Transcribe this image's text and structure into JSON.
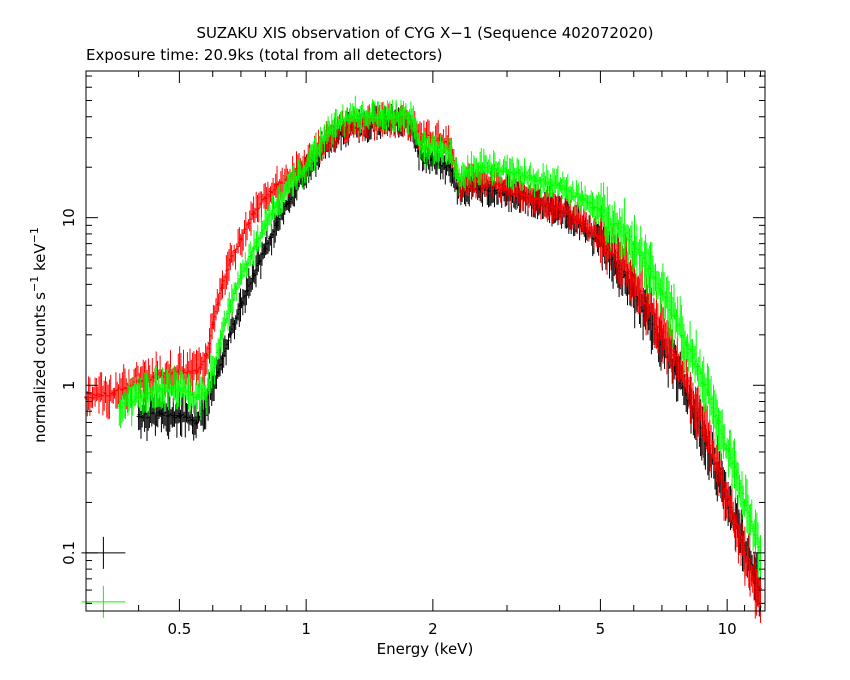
{
  "chart_data": {
    "type": "scatter",
    "title": "SUZAKU XIS observation of CYG X−1 (Sequence 402072020)",
    "subtitle": "Exposure time: 20.9ks (total from all detectors)",
    "xlabel": "Energy (keV)",
    "ylabel_parts": {
      "prefix": "normalized counts s",
      "sup1": "−1",
      "mid": " keV",
      "sup2": "−1"
    },
    "xscale": "log",
    "yscale": "log",
    "xlim": [
      0.3,
      12.3
    ],
    "ylim": [
      0.045,
      75
    ],
    "xticks": [
      {
        "value": 0.5,
        "label": "0.5"
      },
      {
        "value": 1,
        "label": "1"
      },
      {
        "value": 2,
        "label": "2"
      },
      {
        "value": 5,
        "label": "5"
      },
      {
        "value": 10,
        "label": "10"
      }
    ],
    "yticks": [
      {
        "value": 0.1,
        "label": "0.1"
      },
      {
        "value": 1,
        "label": "1"
      },
      {
        "value": 10,
        "label": "10"
      }
    ],
    "series": [
      {
        "color": "#000000",
        "x": [
          0.4,
          0.45,
          0.5,
          0.55,
          0.58,
          0.62,
          0.66,
          0.7,
          0.75,
          0.8,
          0.85,
          0.9,
          0.95,
          1.0,
          1.1,
          1.2,
          1.3,
          1.4,
          1.5,
          1.6,
          1.7,
          1.8,
          1.85,
          1.9,
          2.0,
          2.1,
          2.2,
          2.3,
          2.4,
          2.6,
          2.8,
          3.0,
          3.5,
          4.0,
          4.5,
          5.0,
          5.5,
          6.0,
          6.5,
          7.0,
          7.5,
          8.0,
          8.5,
          9.0,
          9.5,
          10.0,
          10.5,
          11.0,
          11.5,
          12.0
        ],
        "y": [
          0.65,
          0.68,
          0.66,
          0.6,
          0.8,
          1.2,
          2.0,
          3.0,
          4.5,
          6.5,
          9.0,
          12.0,
          15.0,
          19.0,
          26.0,
          32.0,
          35.0,
          36.0,
          37.0,
          37.0,
          38.0,
          34.0,
          25.0,
          22.0,
          22.0,
          21.0,
          20.0,
          15.0,
          15.0,
          15.0,
          14.5,
          14.0,
          12.5,
          11.0,
          9.0,
          7.0,
          5.2,
          3.6,
          2.5,
          1.8,
          1.25,
          0.9,
          0.62,
          0.42,
          0.3,
          0.21,
          0.15,
          0.11,
          0.08,
          0.06
        ]
      },
      {
        "color": "#ff0000",
        "x": [
          0.3,
          0.35,
          0.4,
          0.45,
          0.5,
          0.55,
          0.58,
          0.6,
          0.63,
          0.66,
          0.7,
          0.75,
          0.8,
          0.85,
          0.9,
          0.95,
          1.0,
          1.1,
          1.2,
          1.3,
          1.4,
          1.5,
          1.6,
          1.7,
          1.8,
          1.85,
          1.9,
          2.0,
          2.1,
          2.2,
          2.3,
          2.4,
          2.6,
          2.8,
          3.0,
          3.5,
          4.0,
          4.5,
          5.0,
          5.5,
          6.0,
          6.5,
          7.0,
          7.5,
          8.0,
          8.5,
          9.0,
          9.5,
          10.0,
          10.5,
          11.0,
          11.5,
          12.0
        ],
        "y": [
          0.85,
          0.9,
          1.05,
          1.15,
          1.2,
          1.2,
          1.5,
          2.3,
          3.8,
          5.5,
          7.5,
          10.5,
          13.0,
          15.5,
          17.0,
          19.0,
          22.0,
          28.0,
          33.0,
          36.0,
          37.5,
          38.0,
          37.0,
          38.0,
          34.0,
          32.0,
          30.0,
          30.0,
          29.0,
          28.0,
          16.0,
          17.0,
          16.5,
          16.0,
          15.0,
          13.0,
          11.5,
          9.5,
          7.5,
          5.8,
          4.2,
          3.0,
          2.1,
          1.5,
          1.05,
          0.72,
          0.48,
          0.33,
          0.22,
          0.15,
          0.1,
          0.07,
          0.05
        ]
      },
      {
        "color": "#00ff00",
        "x": [
          0.36,
          0.4,
          0.45,
          0.5,
          0.55,
          0.58,
          0.6,
          0.63,
          0.66,
          0.7,
          0.75,
          0.8,
          0.85,
          0.9,
          0.95,
          1.0,
          1.1,
          1.2,
          1.3,
          1.4,
          1.5,
          1.6,
          1.7,
          1.8,
          1.85,
          1.9,
          2.0,
          2.1,
          2.2,
          2.3,
          2.4,
          2.6,
          2.8,
          3.0,
          3.5,
          4.0,
          4.5,
          5.0,
          5.5,
          6.0,
          6.5,
          7.0,
          7.5,
          8.0,
          8.5,
          9.0,
          9.5,
          10.0,
          10.5,
          11.0,
          11.5,
          12.0
        ],
        "y": [
          0.75,
          0.85,
          0.95,
          0.95,
          0.85,
          0.9,
          1.2,
          2.0,
          3.0,
          4.5,
          6.5,
          9.0,
          12.0,
          15.0,
          17.0,
          20.0,
          30.0,
          37.0,
          40.0,
          41.0,
          40.0,
          40.0,
          42.0,
          37.0,
          28.0,
          26.0,
          26.0,
          25.0,
          24.0,
          17.0,
          19.0,
          20.0,
          19.5,
          19.0,
          17.0,
          15.5,
          13.0,
          11.0,
          9.0,
          7.0,
          5.0,
          3.6,
          2.6,
          1.8,
          1.3,
          0.9,
          0.62,
          0.42,
          0.3,
          0.2,
          0.14,
          0.1
        ]
      }
    ],
    "legend_markers": [
      {
        "color": "#000000",
        "x": 0.33,
        "y": 0.1
      },
      {
        "color": "#00ff00",
        "x": 0.33,
        "y": 0.051
      }
    ]
  }
}
